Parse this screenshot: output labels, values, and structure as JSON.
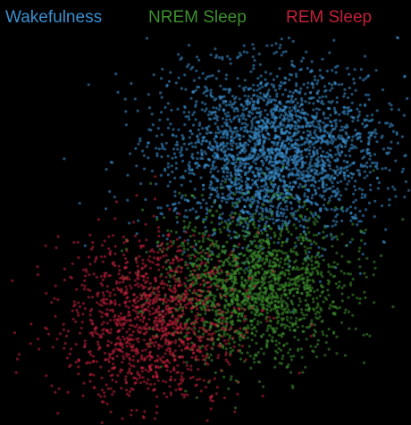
{
  "chart_data": {
    "type": "scatter",
    "title": "",
    "xlabel": "",
    "ylabel": "",
    "grid": false,
    "legend_placement": "top",
    "background": "#000000",
    "series": [
      {
        "name": "Wakefulness",
        "color": "#3a8fd0",
        "cluster": {
          "center": [
            305,
            170
          ],
          "spread": [
            62,
            50
          ],
          "count": 2600
        },
        "points": [
          [
            300,
            168
          ],
          [
            250,
            150
          ],
          [
            360,
            175
          ],
          [
            320,
            120
          ],
          [
            280,
            210
          ],
          [
            345,
            225
          ],
          [
            230,
            185
          ],
          [
            400,
            150
          ]
        ]
      },
      {
        "name": "NREM Sleep",
        "color": "#3e8f2e",
        "cluster": {
          "center": [
            285,
            318
          ],
          "spread": [
            52,
            42
          ],
          "count": 1700
        },
        "points": [
          [
            280,
            320
          ],
          [
            240,
            300
          ],
          [
            320,
            330
          ],
          [
            300,
            270
          ],
          [
            260,
            360
          ],
          [
            330,
            370
          ],
          [
            220,
            340
          ]
        ]
      },
      {
        "name": "REM Sleep",
        "color": "#c0203a",
        "cluster": {
          "center": [
            170,
            360
          ],
          "spread": [
            50,
            48
          ],
          "count": 1300
        },
        "points": [
          [
            150,
            330
          ],
          [
            200,
            320
          ],
          [
            170,
            400
          ],
          [
            120,
            370
          ],
          [
            210,
            380
          ],
          [
            140,
            300
          ]
        ]
      }
    ]
  }
}
